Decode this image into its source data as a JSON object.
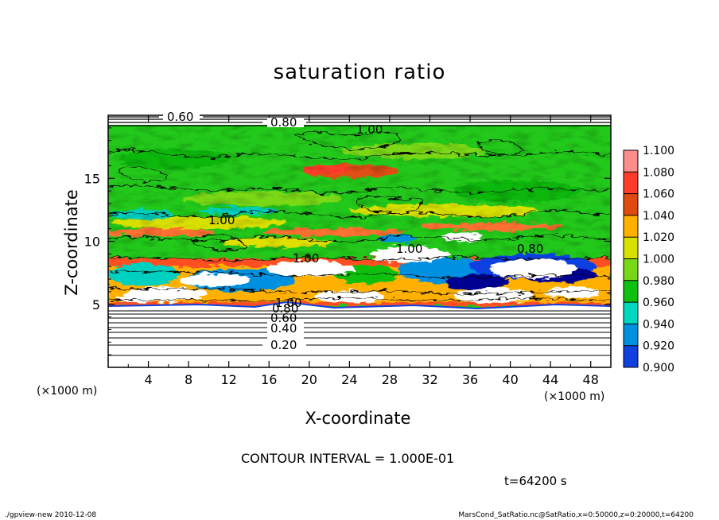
{
  "chart_data": {
    "type": "heatmap",
    "title": "saturation ratio",
    "xlabel": "X-coordinate",
    "ylabel": "Z-coordinate",
    "x_unit": "(×1000 m)",
    "y_unit": "(×1000 m)",
    "xlim": [
      0,
      50
    ],
    "ylim": [
      0,
      20
    ],
    "x_ticks": [
      4,
      8,
      12,
      16,
      20,
      24,
      28,
      32,
      36,
      40,
      44,
      48
    ],
    "y_ticks": [
      5,
      10,
      15
    ],
    "grid": false,
    "legend_position": "right",
    "colorbar": {
      "levels": [
        "1.100",
        "1.080",
        "1.060",
        "1.040",
        "1.020",
        "1.000",
        "0.980",
        "0.960",
        "0.940",
        "0.920",
        "0.900"
      ],
      "colors": [
        "#ff8c8c",
        "#ff3c2c",
        "#e04a10",
        "#ffb000",
        "#d8e000",
        "#78d818",
        "#10c010",
        "#00d8c0",
        "#0090e0",
        "#1040e0",
        "#000090",
        "#8000a0"
      ]
    },
    "contour_labels": [
      "0.20",
      "0.40",
      "0.60",
      "0.80",
      "1.00",
      "0.60",
      "0.80",
      "1.00",
      "1.00",
      "1.00",
      "1.00",
      "0.80"
    ],
    "regions": {
      "lower_layer_top_km": 4.5,
      "lower_layer_value": "below 0.80 (uncoloured, contour lines only)",
      "cloud_layer_km": [
        4.5,
        10
      ],
      "upper_layer_km": [
        10,
        19
      ],
      "top_layer_km": [
        19,
        20
      ]
    },
    "contour_interval": "CONTOUR INTERVAL = 1.000E-01"
  },
  "time_label": "t=64200 s",
  "footer": {
    "left": "./gpview-new   2010-12-08",
    "right": "MarsCond_SatRatio.nc@SatRatio,x=0:50000,z=0:20000,t=64200"
  }
}
